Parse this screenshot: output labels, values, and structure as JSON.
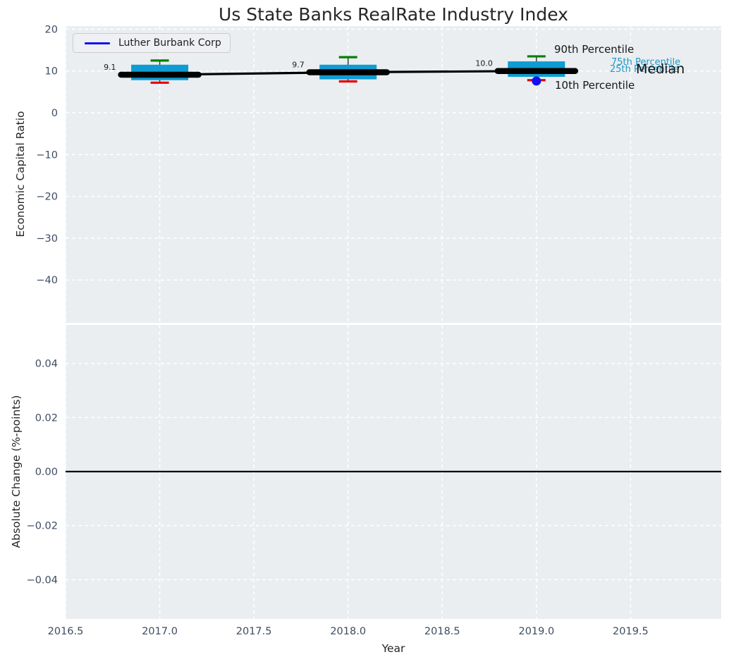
{
  "title": "Us State Banks RealRate Industry Index",
  "legend": {
    "label": "Luther Burbank Corp"
  },
  "axes": {
    "x": {
      "label": "Year",
      "tick_labels": [
        "2016.5",
        "2017.0",
        "2017.5",
        "2018.0",
        "2018.5",
        "2019.0",
        "2019.5"
      ],
      "tick_values": [
        2016.5,
        2017.0,
        2017.5,
        2018.0,
        2018.5,
        2019.0,
        2019.5
      ],
      "xlim": [
        2016.5,
        2019.98
      ]
    },
    "top": {
      "ylabel": "Economic Capital Ratio",
      "tick_labels": [
        "20",
        "10",
        "0",
        "−10",
        "−20",
        "−30",
        "−40"
      ],
      "tick_values": [
        20,
        10,
        0,
        -10,
        -20,
        -30,
        -40
      ],
      "ylim": [
        -50.5,
        20.8
      ],
      "grid": "white-dashed"
    },
    "bottom": {
      "ylabel": "Absolute Change (%-points)",
      "tick_labels": [
        "0.04",
        "0.02",
        "0.00",
        "−0.02",
        "−0.04"
      ],
      "tick_values": [
        0.04,
        0.02,
        0.0,
        -0.02,
        -0.04
      ],
      "ylim": [
        -0.0546,
        0.0546
      ],
      "grid": "white-dashed"
    }
  },
  "annotations": {
    "p90_label": "90th Percentile",
    "p75_label": "75th Percentile",
    "p25_label": "25th Percentile",
    "median_label": "Median",
    "p10_label": "10th Percentile"
  },
  "chart_data": {
    "type": "boxplot-timeseries",
    "title": "Us State Banks RealRate Industry Index",
    "xlabel": "Year",
    "ylabel_top": "Economic Capital Ratio",
    "ylabel_bottom": "Absolute Change (%-points)",
    "legend_position": "upper left",
    "x": [
      2017,
      2018,
      2019
    ],
    "boxes": [
      {
        "year": 2017,
        "p10": 7.2,
        "p25": 7.8,
        "median": 9.1,
        "p75": 11.5,
        "p90": 12.5
      },
      {
        "year": 2018,
        "p10": 7.5,
        "p25": 8.0,
        "median": 9.7,
        "p75": 11.5,
        "p90": 13.3
      },
      {
        "year": 2019,
        "p10": 7.8,
        "p25": 8.6,
        "median": 10.0,
        "p75": 12.3,
        "p90": 13.5
      }
    ],
    "median_trend": {
      "x": [
        2017,
        2018,
        2019
      ],
      "y": [
        9.1,
        9.7,
        10.0
      ]
    },
    "median_value_labels": [
      "9.1",
      "9.7",
      "10.0"
    ],
    "company_series": {
      "name": "Luther Burbank Corp",
      "points": [
        {
          "x": 2019,
          "y": 7.6
        }
      ]
    },
    "bottom_panel": {
      "zero_line": 0.0,
      "bars": []
    }
  },
  "colors": {
    "box_fill": "#0f9cd2",
    "p90_cap": "#008000",
    "p10_cap": "#e60000",
    "median": "#000000",
    "company_blue": "#1111ee",
    "cyan_label": "#2097c8",
    "tick_text": "#3d4c63",
    "panel_bg": "#eaeef1",
    "grid": "#ffffff"
  }
}
